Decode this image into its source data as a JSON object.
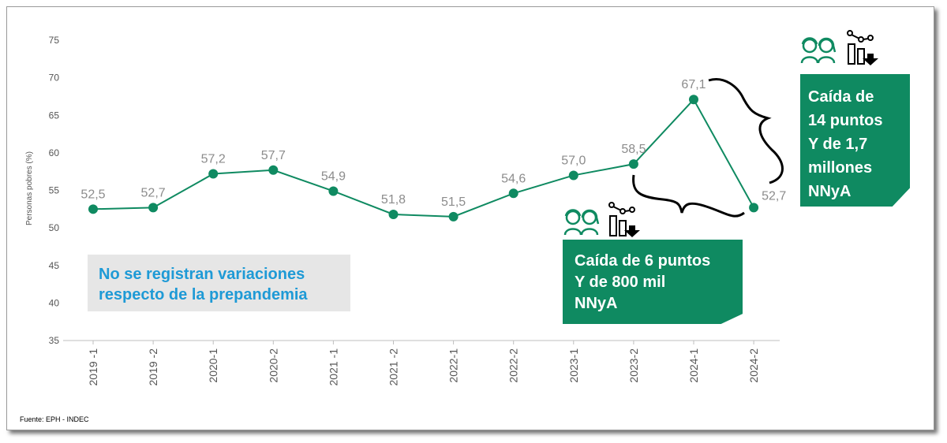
{
  "chart_data": {
    "type": "line",
    "categories": [
      "2019 -1",
      "2019 -2",
      "2020-1",
      "2020-2",
      "2021 -1",
      "2021 -2",
      "2022-1",
      "2022-2",
      "2023-1",
      "2023-2",
      "2024-1",
      "2024-2"
    ],
    "values": [
      52.5,
      52.7,
      57.2,
      57.7,
      54.9,
      51.8,
      51.5,
      54.6,
      57.0,
      58.5,
      67.1,
      52.7
    ],
    "value_labels": [
      "52,5",
      "52,7",
      "57,2",
      "57,7",
      "54,9",
      "51,8",
      "51,5",
      "54,6",
      "57,0",
      "58,5",
      "67,1",
      "52,7"
    ],
    "ylabel": "Personas pobres (%)",
    "ylim": [
      35,
      75
    ],
    "yticks": [
      35,
      40,
      45,
      50,
      55,
      60,
      65,
      70,
      75
    ],
    "grid": false,
    "line_color": "#0f8a61"
  },
  "note": {
    "text": "No se registran variaciones\nrespecto de la prepandemia",
    "color": "#1e9ad6"
  },
  "callouts": [
    {
      "text": "Caída de 6 puntos\nY de 800 mil\nNNyA",
      "color": "#0f8a61"
    },
    {
      "text": "Caída de\n14 puntos\nY de 1,7\nmillones\nNNyA",
      "color": "#0f8a61"
    }
  ],
  "icons": [
    "children-icon",
    "declining-bar-chart-icon"
  ],
  "source": "Fuente: EPH - INDEC"
}
